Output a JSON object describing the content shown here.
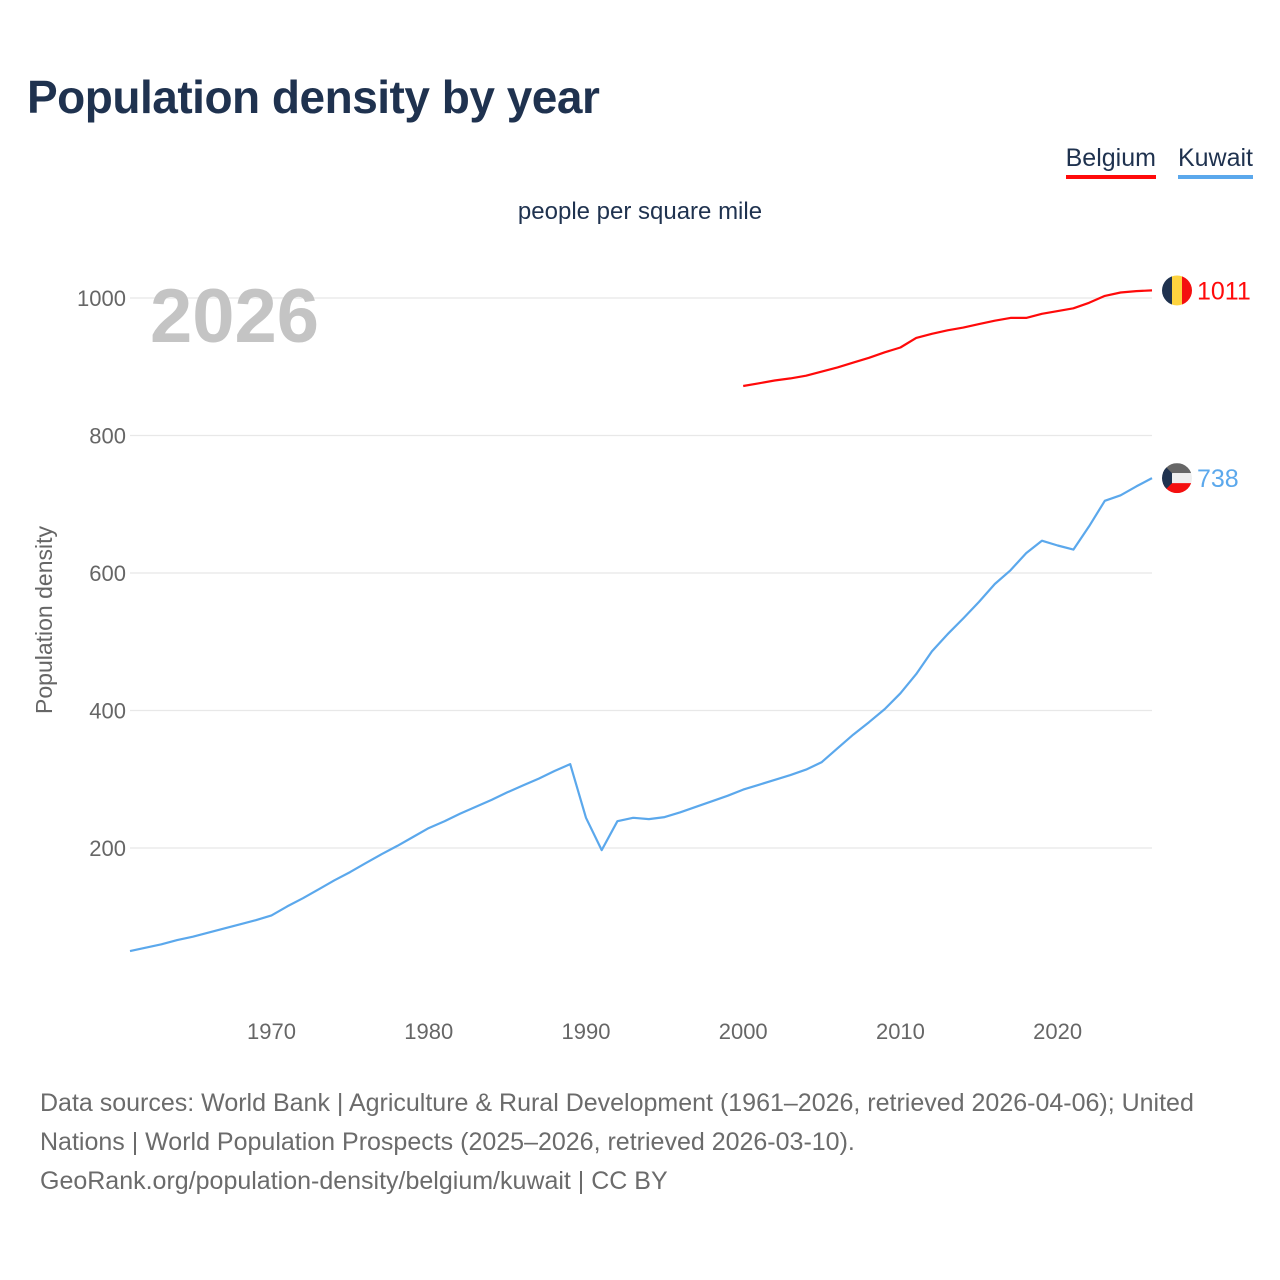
{
  "title": "Population density by year",
  "subtitle": "people per square mile",
  "year_label": "2026",
  "legend": [
    {
      "name": "Belgium",
      "color": "#ff0a0a"
    },
    {
      "name": "Kuwait",
      "color": "#5ba8ec"
    }
  ],
  "footer": {
    "line1": "Data sources: World Bank | Agriculture & Rural Development (1961–2026, retrieved 2026-04-06); United Nations | World Population Prospects (2025–2026, retrieved 2026-03-10).",
    "line2": "GeoRank.org/population-density/belgium/kuwait | CC BY"
  },
  "chart_data": {
    "type": "line",
    "title": "Population density by year",
    "subtitle": "people per square mile",
    "xlabel": "",
    "ylabel": "Population density",
    "xlim": [
      1961,
      2026
    ],
    "ylim": [
      0,
      1000
    ],
    "xticks": [
      1970,
      1980,
      1990,
      2000,
      2010,
      2020
    ],
    "yticks": [
      200,
      400,
      600,
      800,
      1000
    ],
    "grid": true,
    "legend_position": "top-right",
    "series": [
      {
        "name": "Belgium",
        "color": "#ff0a0a",
        "end_label": "1011",
        "x": [
          2000,
          2001,
          2002,
          2003,
          2004,
          2005,
          2006,
          2007,
          2008,
          2009,
          2010,
          2011,
          2012,
          2013,
          2014,
          2015,
          2016,
          2017,
          2018,
          2019,
          2020,
          2021,
          2022,
          2023,
          2024,
          2025,
          2026
        ],
        "values": [
          872,
          876,
          880,
          883,
          887,
          893,
          899,
          906,
          913,
          921,
          928,
          942,
          948,
          953,
          957,
          962,
          967,
          971,
          971,
          977,
          981,
          985,
          993,
          1003,
          1008,
          1010,
          1011
        ]
      },
      {
        "name": "Kuwait",
        "color": "#5ba8ec",
        "end_label": "738",
        "x": [
          1961,
          1962,
          1963,
          1964,
          1965,
          1966,
          1967,
          1968,
          1969,
          1970,
          1971,
          1972,
          1973,
          1974,
          1975,
          1976,
          1977,
          1978,
          1979,
          1980,
          1981,
          1982,
          1983,
          1984,
          1985,
          1986,
          1987,
          1988,
          1989,
          1990,
          1991,
          1992,
          1993,
          1994,
          1995,
          1996,
          1997,
          1998,
          1999,
          2000,
          2001,
          2002,
          2003,
          2004,
          2005,
          2006,
          2007,
          2008,
          2009,
          2010,
          2011,
          2012,
          2013,
          2014,
          2015,
          2016,
          2017,
          2018,
          2019,
          2020,
          2021,
          2022,
          2023,
          2024,
          2025,
          2026
        ],
        "values": [
          50,
          55,
          60,
          66,
          71,
          77,
          83,
          89,
          95,
          102,
          115,
          127,
          140,
          153,
          165,
          178,
          191,
          203,
          216,
          229,
          239,
          250,
          260,
          270,
          281,
          291,
          301,
          312,
          322,
          244,
          197,
          239,
          244,
          242,
          245,
          252,
          260,
          268,
          276,
          285,
          292,
          299,
          306,
          314,
          325,
          345,
          365,
          383,
          402,
          425,
          453,
          486,
          511,
          534,
          558,
          584,
          604,
          629,
          647,
          640,
          634,
          668,
          705,
          713,
          726,
          738
        ]
      }
    ]
  }
}
